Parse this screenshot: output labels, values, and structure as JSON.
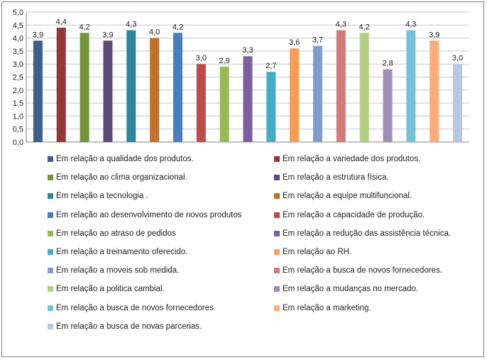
{
  "chart_data": {
    "type": "bar",
    "title": "",
    "xlabel": "",
    "ylabel": "",
    "ylim": [
      0,
      5
    ],
    "yticks": [
      0,
      0.5,
      1,
      1.5,
      2,
      2.5,
      3,
      3.5,
      4,
      4.5,
      5
    ],
    "ytick_labels": [
      "0,0",
      "0,5",
      "1,0",
      "1,5",
      "2,0",
      "2,5",
      "3,0",
      "3,5",
      "4,0",
      "4,5",
      "5,0"
    ],
    "grid": true,
    "legend_position": "bottom",
    "series": [
      {
        "name": "Em relação a qualidade dos produtos.",
        "value": 3.9,
        "label": "3,9",
        "color": "#3d5f8c"
      },
      {
        "name": "Em relação a variedade dos produtos.",
        "value": 4.4,
        "label": "4,4",
        "color": "#953735"
      },
      {
        "name": "Em relação ao clima organizacional.",
        "value": 4.2,
        "label": "4,2",
        "color": "#76923c"
      },
      {
        "name": "Em relação a estrutura física.",
        "value": 3.9,
        "label": "3,9",
        "color": "#5f4a7b"
      },
      {
        "name": "Em relação a tecnologia .",
        "value": 4.3,
        "label": "4,3",
        "color": "#31849b"
      },
      {
        "name": "Em relação a equipe multifuncional.",
        "value": 4.0,
        "label": "4,0",
        "color": "#c0712d"
      },
      {
        "name": "Em relação ao desenvolvimento de novos produtos",
        "value": 4.2,
        "label": "4,2",
        "color": "#4a7ebb"
      },
      {
        "name": "Em relação a capacidade de produção.",
        "value": 3.0,
        "label": "3,0",
        "color": "#be4b48"
      },
      {
        "name": "Em relação ao atraso de pedidos",
        "value": 2.9,
        "label": "2,9",
        "color": "#98b954"
      },
      {
        "name": "Em relação a redução das assistência técnica.",
        "value": 3.3,
        "label": "3,3",
        "color": "#7d5fa0"
      },
      {
        "name": "Em relação a treinamento oferecido.",
        "value": 2.7,
        "label": "2,7",
        "color": "#46aac5"
      },
      {
        "name": "Em relação ao RH.",
        "value": 3.6,
        "label": "3,6",
        "color": "#f59d56"
      },
      {
        "name": "Em relação a moveis sob medida.",
        "value": 3.7,
        "label": "3,7",
        "color": "#7e9fce"
      },
      {
        "name": "Em relação a busca de novos fornecedores.",
        "value": 4.3,
        "label": "4,3",
        "color": "#d07c7a"
      },
      {
        "name": "Em relação a politica cambial.",
        "value": 4.2,
        "label": "4,2",
        "color": "#b3cf84"
      },
      {
        "name": "Em relação a mudanças no mercado.",
        "value": 2.8,
        "label": "2,8",
        "color": "#a08db9"
      },
      {
        "name": "Em relação a busca de novos fornecedores",
        "value": 4.3,
        "label": "4,3",
        "color": "#78c0d4"
      },
      {
        "name": "Em relação a marketing.",
        "value": 3.9,
        "label": "3,9",
        "color": "#f9ad7a"
      },
      {
        "name": "Em relação a busca de novas parcerias.",
        "value": 3.0,
        "label": "3,0",
        "color": "#b9c8e2"
      }
    ]
  }
}
